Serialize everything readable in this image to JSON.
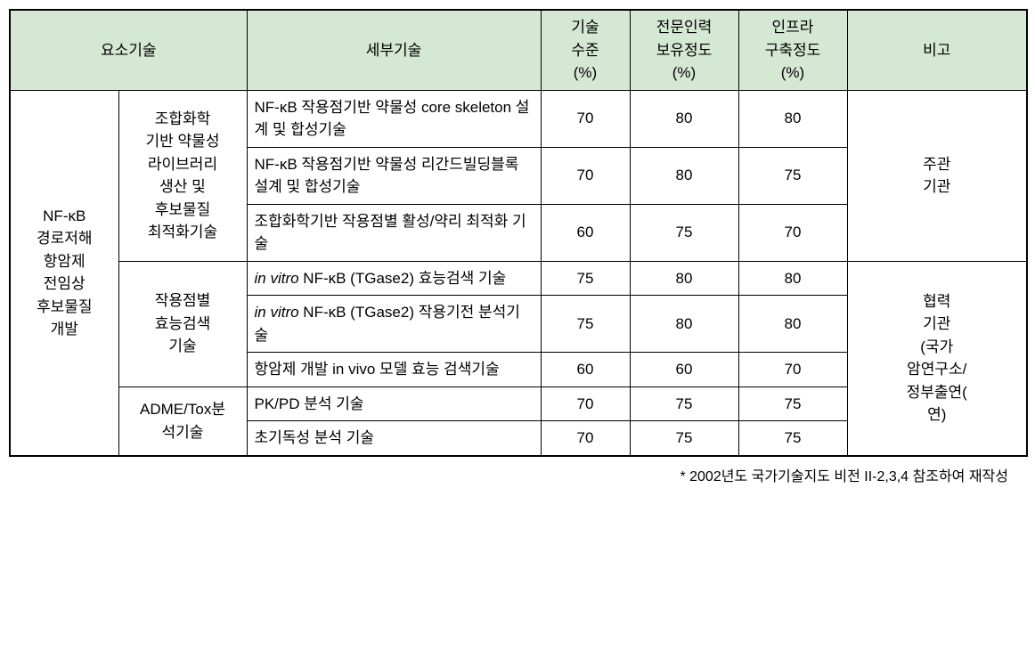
{
  "header": {
    "yoso": "요소기술",
    "detail": "세부기술",
    "tech_level": "기술\n수준\n(%)",
    "expert": "전문인력\n보유정도\n(%)",
    "infra": "인프라\n구축정도\n(%)",
    "remark": "비고"
  },
  "main_category": "NF-κB\n경로저해\n항암제\n전임상\n후보물질\n개발",
  "groups": [
    {
      "sub_category": "조합화학\n기반 약물성\n라이브러리\n생산 및\n후보물질\n최적화기술",
      "remark": "주관\n기관",
      "rows": [
        {
          "detail": "NF-κB 작용점기반 약물성 core skeleton 설계 및 합성기술",
          "tech": "70",
          "expert": "80",
          "infra": "80"
        },
        {
          "detail": "NF-κB 작용점기반 약물성 리간드빌딩블록 설계 및 합성기술",
          "tech": "70",
          "expert": "80",
          "infra": "75"
        },
        {
          "detail": "조합화학기반 작용점별 활성/약리 최적화 기술",
          "tech": "60",
          "expert": "75",
          "infra": "70"
        }
      ]
    },
    {
      "sub_category": "작용점별\n효능검색\n기술",
      "remark": "협력\n기관\n(국가\n암연구소/\n정부출연(\n연)",
      "rows": [
        {
          "detail_html": "<i>in vitro</i> NF-κB (TGase2) 효능검색 기술",
          "tech": "75",
          "expert": "80",
          "infra": "80"
        },
        {
          "detail_html": "<i>in vitro</i> NF-κB (TGase2) 작용기전 분석기술",
          "tech": "75",
          "expert": "80",
          "infra": "80"
        },
        {
          "detail": "항암제 개발 in vivo 모델 효능 검색기술",
          "tech": "60",
          "expert": "60",
          "infra": "70"
        }
      ]
    },
    {
      "sub_category": "ADME/Tox분\n석기술",
      "rows": [
        {
          "detail": "PK/PD 분석 기술",
          "tech": "70",
          "expert": "75",
          "infra": "75"
        },
        {
          "detail": "초기독성 분석 기술",
          "tech": "70",
          "expert": "75",
          "infra": "75"
        }
      ]
    }
  ],
  "footnote": "* 2002년도 국가기술지도 비전 II-2,3,4 참조하여 재작성"
}
